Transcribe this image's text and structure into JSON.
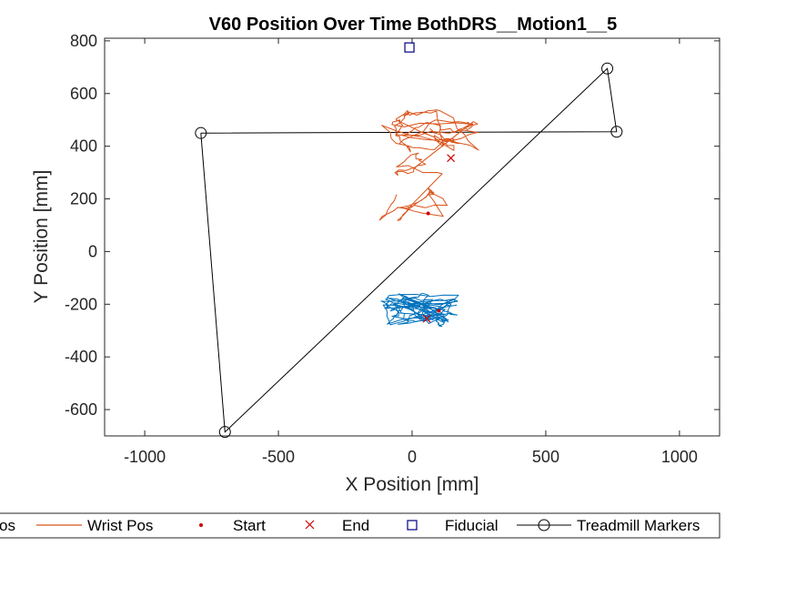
{
  "chart_data": {
    "type": "line",
    "title": "V60 Position Over Time BothDRS__Motion1__5",
    "xlabel": "X Position [mm]",
    "ylabel": "Y Position [mm]",
    "xlim": [
      -1150,
      1150
    ],
    "ylim": [
      -700,
      810
    ],
    "xticks": [
      -1000,
      -500,
      0,
      500,
      1000
    ],
    "yticks": [
      -600,
      -400,
      -200,
      0,
      200,
      400,
      600,
      800
    ],
    "grid": false,
    "legend": {
      "placement": "bottom-outside",
      "entries": [
        {
          "label": "os",
          "kind": "line",
          "color": "#0072bd"
        },
        {
          "label": "Wrist Pos",
          "kind": "line",
          "color": "#d95319"
        },
        {
          "label": "Start",
          "kind": "dot",
          "color": "#cc0000"
        },
        {
          "label": "End",
          "kind": "x",
          "color": "#cc0000"
        },
        {
          "label": "Fiducial",
          "kind": "square",
          "color": "#000080"
        },
        {
          "label": "Treadmill Markers",
          "kind": "circle-line",
          "color": "#000000"
        }
      ]
    },
    "series": [
      {
        "name": "Treadmill Markers",
        "color": "#000000",
        "points": [
          [
            -790,
            450
          ],
          [
            765,
            455
          ],
          [
            730,
            695
          ],
          [
            -700,
            -685
          ],
          [
            -790,
            450
          ]
        ]
      },
      {
        "name": "Fiducial",
        "color": "#000080",
        "points": [
          [
            -10,
            775
          ]
        ]
      },
      {
        "name": "Wrist Pos",
        "color": "#d95319",
        "start": [
          60,
          145
        ],
        "end": [
          145,
          355
        ]
      },
      {
        "name": "os",
        "color": "#0072bd",
        "start": [
          100,
          -225
        ],
        "end": [
          55,
          -255
        ]
      }
    ]
  }
}
